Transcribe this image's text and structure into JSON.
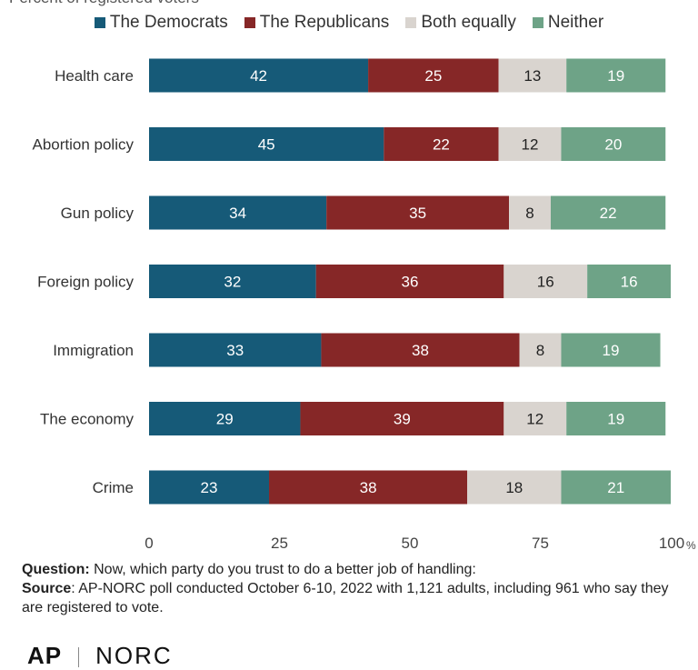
{
  "top_text": "Percent of registered voters",
  "legend": [
    {
      "label": "The Democrats",
      "color": "#165a78"
    },
    {
      "label": "The Republicans",
      "color": "#862727"
    },
    {
      "label": "Both equally",
      "color": "#d9d4cf"
    },
    {
      "label": "Neither",
      "color": "#6ea387"
    }
  ],
  "chart_data": {
    "type": "bar",
    "orientation": "horizontal",
    "stacked": true,
    "categories": [
      "Health care",
      "Abortion policy",
      "Gun policy",
      "Foreign policy",
      "Immigration",
      "The economy",
      "Crime"
    ],
    "series": [
      {
        "name": "The Democrats",
        "values": [
          42,
          45,
          34,
          32,
          33,
          29,
          23
        ],
        "color": "#165a78"
      },
      {
        "name": "The Republicans",
        "values": [
          25,
          22,
          35,
          36,
          38,
          39,
          38
        ],
        "color": "#862727"
      },
      {
        "name": "Both equally",
        "values": [
          13,
          12,
          8,
          16,
          8,
          12,
          18
        ],
        "color": "#d9d4cf"
      },
      {
        "name": "Neither",
        "values": [
          19,
          20,
          22,
          16,
          19,
          19,
          21
        ],
        "color": "#6ea387"
      }
    ],
    "xlim": [
      0,
      100
    ],
    "xticks": [
      "0",
      "25",
      "50",
      "75",
      "100"
    ],
    "x_unit": "%",
    "legend_position": "top",
    "grid": false
  },
  "footer": {
    "question_label": "Question:",
    "question_text": " Now, which party do you trust to do a better job of handling:",
    "source_label": "Source",
    "source_text": ": AP-NORC poll conducted October 6-10, 2022 with 1,121 adults, including 961 who say they are registered to vote."
  },
  "logos": {
    "ap": "AP",
    "norc": "NORC"
  }
}
